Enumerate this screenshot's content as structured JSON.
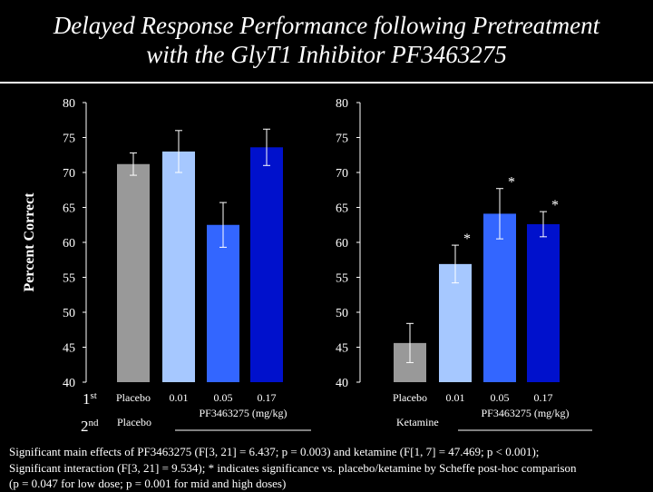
{
  "title": {
    "line1": "Delayed Response Performance following Pretreatment",
    "line2": "with the GlyT1 Inhibitor PF3463275"
  },
  "chart_data": {
    "type": "bar",
    "ylabel": "Percent Correct",
    "ylim": [
      40,
      80
    ],
    "yticks": [
      "80",
      "75",
      "70",
      "65",
      "60",
      "55",
      "50",
      "45",
      "40"
    ],
    "row_labels": {
      "first_base": "1",
      "first_sup": "st",
      "second_base": "2",
      "second_sup": "nd"
    },
    "panels": [
      {
        "name": "left",
        "categories": [
          "Placebo",
          "0.01",
          "0.05",
          "0.17"
        ],
        "values": [
          71.2,
          73.0,
          62.5,
          73.6
        ],
        "errors": [
          1.6,
          3.0,
          3.2,
          2.6
        ],
        "colors": [
          "#999999",
          "#a6c8ff",
          "#3366ff",
          "#0011cc"
        ],
        "significance": [
          "",
          "",
          "",
          ""
        ],
        "second_treatment": "Placebo",
        "group_label": "PF3463275 (mg/kg)"
      },
      {
        "name": "right",
        "categories": [
          "Placebo",
          "0.01",
          "0.05",
          "0.17"
        ],
        "values": [
          45.6,
          56.9,
          64.1,
          62.6
        ],
        "errors": [
          2.8,
          2.7,
          3.6,
          1.8
        ],
        "colors": [
          "#999999",
          "#a6c8ff",
          "#3366ff",
          "#0011cc"
        ],
        "significance": [
          "",
          "*",
          "*",
          "*"
        ],
        "second_treatment": "Ketamine",
        "group_label": "PF3463275 (mg/kg)"
      }
    ]
  },
  "caption": {
    "line1": "Significant main effects of PF3463275 (F[3, 21] = 6.437; p = 0.003) and ketamine (F[1, 7] = 47.469; p < 0.001);",
    "line2": "Significant interaction (F[3, 21] = 9.534); * indicates significance vs. placebo/ketamine by Scheffe post-hoc comparison",
    "line3": "(p = 0.047 for low dose; p = 0.001 for mid and high doses)"
  }
}
